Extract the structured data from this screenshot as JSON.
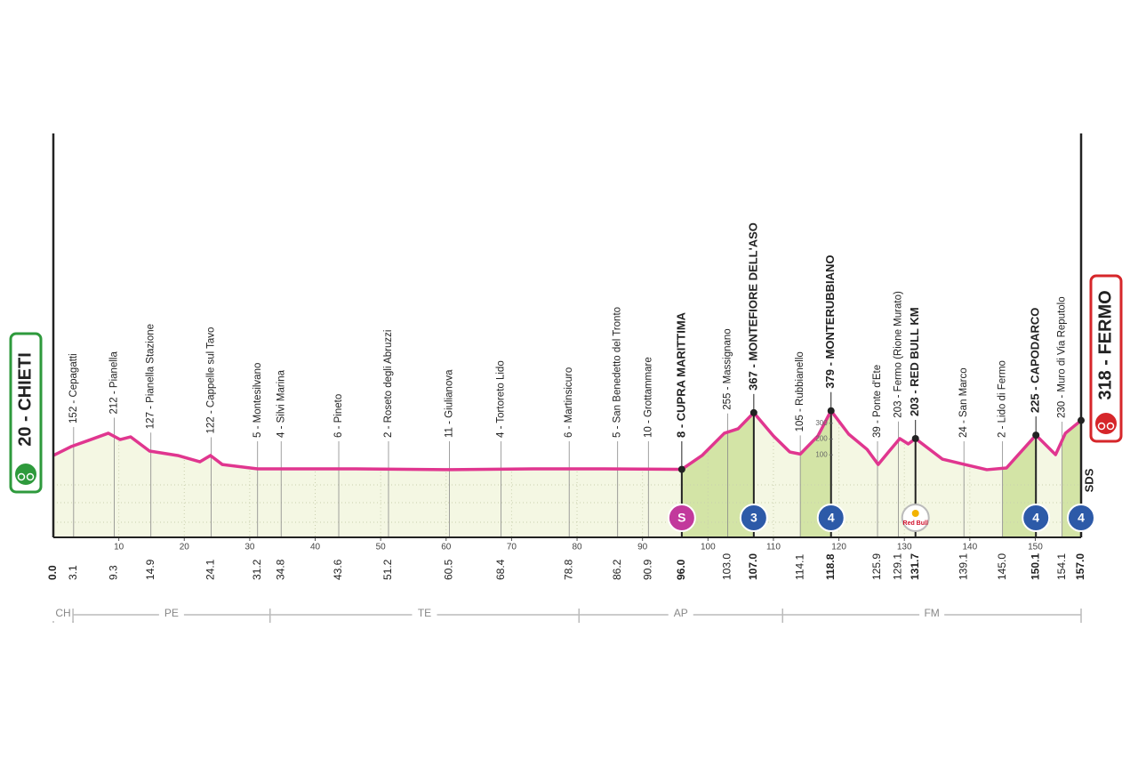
{
  "chart_data": {
    "type": "area",
    "color": "#e0368f",
    "fill": "#f4f7e3",
    "climb_fill": "#d3e4a6",
    "xlim": [
      0,
      157
    ],
    "ylim": [
      0,
      400
    ],
    "xticks": [
      10,
      20,
      30,
      40,
      50,
      60,
      70,
      80,
      90,
      100,
      110,
      120,
      130,
      140,
      150
    ],
    "yticks": [
      100,
      200,
      300
    ],
    "x": [
      0,
      2.7,
      5.4,
      8.4,
      10.2,
      11.8,
      14.7,
      19.0,
      22.4,
      24.0,
      25.8,
      31.2,
      46.2,
      59.8,
      73.3,
      84.2,
      96.0,
      99.1,
      102.5,
      104.6,
      107.0,
      110.0,
      112.5,
      114.1,
      116.8,
      118.8,
      121.5,
      124.3,
      126.0,
      127.7,
      129.3,
      130.6,
      131.7,
      135.8,
      139.2,
      142.6,
      145.6,
      150.1,
      153.1,
      154.6,
      157.0
    ],
    "values": [
      96,
      152,
      192,
      237,
      197,
      214,
      124,
      96,
      56,
      96,
      39,
      11,
      11,
      6,
      11,
      11,
      8,
      96,
      237,
      265,
      367,
      220,
      118,
      105,
      220,
      379,
      231,
      135,
      39,
      124,
      203,
      169,
      203,
      73,
      39,
      6,
      17,
      225,
      101,
      237,
      318
    ],
    "waypoints": [
      {
        "km": 0,
        "km_label": "0.0",
        "name": "20 - CHIETI",
        "style": "start"
      },
      {
        "km": 3.1,
        "km_label": "3.1",
        "name": "152 - Cepagatti",
        "style": "normal"
      },
      {
        "km": 9.3,
        "km_label": "9.3",
        "name": "212 - Pianella",
        "style": "normal"
      },
      {
        "km": 14.9,
        "km_label": "14.9",
        "name": "127 - Pianella Stazione",
        "style": "normal"
      },
      {
        "km": 24.1,
        "km_label": "24.1",
        "name": "122 - Cappelle sul Tavo",
        "style": "normal"
      },
      {
        "km": 31.2,
        "km_label": "31.2",
        "name": "5 - Montesilvano",
        "style": "normal"
      },
      {
        "km": 34.8,
        "km_label": "34.8",
        "name": "4 - Silvi Marina",
        "style": "normal"
      },
      {
        "km": 43.6,
        "km_label": "43.6",
        "name": "6 - Pineto",
        "style": "normal"
      },
      {
        "km": 51.2,
        "km_label": "51.2",
        "name": "2 - Roseto degli Abruzzi",
        "style": "normal"
      },
      {
        "km": 60.5,
        "km_label": "60.5",
        "name": "11 - Giulianova",
        "style": "normal"
      },
      {
        "km": 68.4,
        "km_label": "68.4",
        "name": "4 - Tortoreto Lido",
        "style": "normal"
      },
      {
        "km": 78.8,
        "km_label": "78.8",
        "name": "6 - Martinsicuro",
        "style": "normal"
      },
      {
        "km": 86.2,
        "km_label": "86.2",
        "name": "5 - San Benedetto del Tronto",
        "style": "normal"
      },
      {
        "km": 90.9,
        "km_label": "90.9",
        "name": "10 - Grottammare",
        "style": "normal"
      },
      {
        "km": 96,
        "km_label": "96.0",
        "name": "8 - CUPRA MARITTIMA",
        "style": "bold"
      },
      {
        "km": 103,
        "km_label": "103.0",
        "name": "255 - Massignano",
        "style": "normal"
      },
      {
        "km": 107,
        "km_label": "107.0",
        "name": "367 - MONTEFIORE DELL'ASO",
        "style": "bold"
      },
      {
        "km": 114.1,
        "km_label": "114.1",
        "name": "105 - Rubbianello",
        "style": "normal"
      },
      {
        "km": 118.8,
        "km_label": "118.8",
        "name": "379 - MONTERUBBIANO",
        "style": "bold"
      },
      {
        "km": 125.9,
        "km_label": "125.9",
        "name": "39 - Ponte d'Ete",
        "style": "normal"
      },
      {
        "km": 129.1,
        "km_label": "129.1",
        "name": "203 - Fermo (Rione Murato)",
        "style": "normal"
      },
      {
        "km": 131.7,
        "km_label": "131.7",
        "name": "203 - RED BULL KM",
        "style": "bold"
      },
      {
        "km": 139.1,
        "km_label": "139.1",
        "name": "24 - San Marco",
        "style": "normal"
      },
      {
        "km": 145,
        "km_label": "145.0",
        "name": "2 - Lido di Fermo",
        "style": "normal"
      },
      {
        "km": 150.1,
        "km_label": "150.1",
        "name": "225 - CAPODARCO",
        "style": "bold"
      },
      {
        "km": 154.1,
        "km_label": "154.1",
        "name": "230 - Muro di Via Reputolo",
        "style": "normal"
      },
      {
        "km": 157,
        "km_label": "157.0",
        "name": "318 - FERMO",
        "style": "finish"
      }
    ],
    "climb_segments": [
      [
        96,
        107
      ],
      [
        114.1,
        118.8
      ],
      [
        145,
        150.1
      ],
      [
        154.1,
        157
      ]
    ],
    "badges": [
      {
        "km": 96,
        "text": "S",
        "color": "#c2399c"
      },
      {
        "km": 107,
        "text": "3",
        "color": "#2d5aa8"
      },
      {
        "km": 118.8,
        "text": "4",
        "color": "#2d5aa8"
      },
      {
        "km": 131.7,
        "text": "Red Bull",
        "color": "#ffffff"
      },
      {
        "km": 150.1,
        "text": "4",
        "color": "#2d5aa8"
      },
      {
        "km": 157,
        "text": "4",
        "color": "#2d5aa8"
      }
    ],
    "provinces": [
      {
        "name": "CH",
        "from": 0,
        "to": 3
      },
      {
        "name": "PE",
        "from": 3,
        "to": 33.1
      },
      {
        "name": "TE",
        "from": 33.1,
        "to": 80.3
      },
      {
        "name": "AP",
        "from": 80.3,
        "to": 111.4
      },
      {
        "name": "FM",
        "from": 111.4,
        "to": 157
      }
    ],
    "logo": "SDS"
  }
}
